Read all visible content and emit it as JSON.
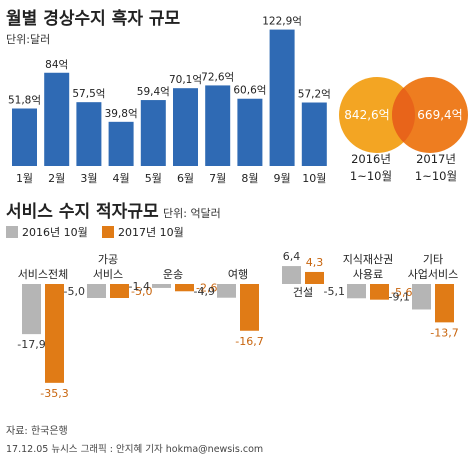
{
  "top": {
    "title": "월별 경상수지 흑자 규모",
    "unit": "단위:달러"
  },
  "bottom": {
    "title": "서비스 수지 적자규모",
    "unit": "단위: 억달러"
  },
  "chart_data": [
    {
      "type": "bar",
      "categories": [
        "1월",
        "2월",
        "3월",
        "4월",
        "5월",
        "6월",
        "7월",
        "8월",
        "9월",
        "10월"
      ],
      "values": [
        51.8,
        84,
        57.5,
        39.8,
        59.4,
        70.1,
        72.6,
        60.6,
        122.9,
        57.2
      ],
      "data_labels": [
        "51,8억",
        "84억",
        "57,5억",
        "39,8억",
        "59,4억",
        "70,1억",
        "72,6억",
        "60,6억",
        "122,9억",
        "57,2억"
      ],
      "ylim": [
        0,
        130
      ],
      "colors": [
        "#2f6ab4"
      ],
      "grid": false
    },
    {
      "type": "comparison-circles",
      "items": [
        {
          "value": 842.6,
          "value_label": "842,6억",
          "label_line1": "2016년",
          "label_line2": "1~10월"
        },
        {
          "value": 669.4,
          "value_label": "669,4억",
          "label_line1": "2017년",
          "label_line2": "1~10월"
        }
      ],
      "colors": [
        "#f3a523",
        "#ee7d20"
      ]
    },
    {
      "type": "bar",
      "categories": [
        [
          "서비스전체"
        ],
        [
          "가공",
          "서비스"
        ],
        [
          "운송"
        ],
        [
          "여행"
        ],
        [
          "건설"
        ],
        [
          "지식재산권",
          "사용료"
        ],
        [
          "기타",
          "사업서비스"
        ]
      ],
      "series": [
        {
          "name": "2016년 10월",
          "values": [
            -17.9,
            -5.0,
            -1.4,
            -4.9,
            6.4,
            -5.1,
            -9.1
          ],
          "labels": [
            "-17,9",
            "-5,0",
            "-1,4",
            "-4,9",
            "6,4",
            "-5,1",
            "-9,1"
          ]
        },
        {
          "name": "2017년 10월",
          "values": [
            -35.3,
            -5.0,
            -2.6,
            -16.7,
            4.3,
            -5.6,
            -13.7
          ],
          "labels": [
            "-35,3",
            "-5,0",
            "-2,6",
            "-16,7",
            "4,3",
            "-5,6",
            "-13,7"
          ]
        }
      ],
      "colors": [
        "#b5b5b5",
        "#e07b16"
      ],
      "legend": "top-left",
      "grid": false
    }
  ],
  "footer": {
    "source": "자료: 한국은행",
    "credit": "17.12.05 뉴시스 그래픽 : 안지혜 기자 hokma@newsis.com"
  }
}
